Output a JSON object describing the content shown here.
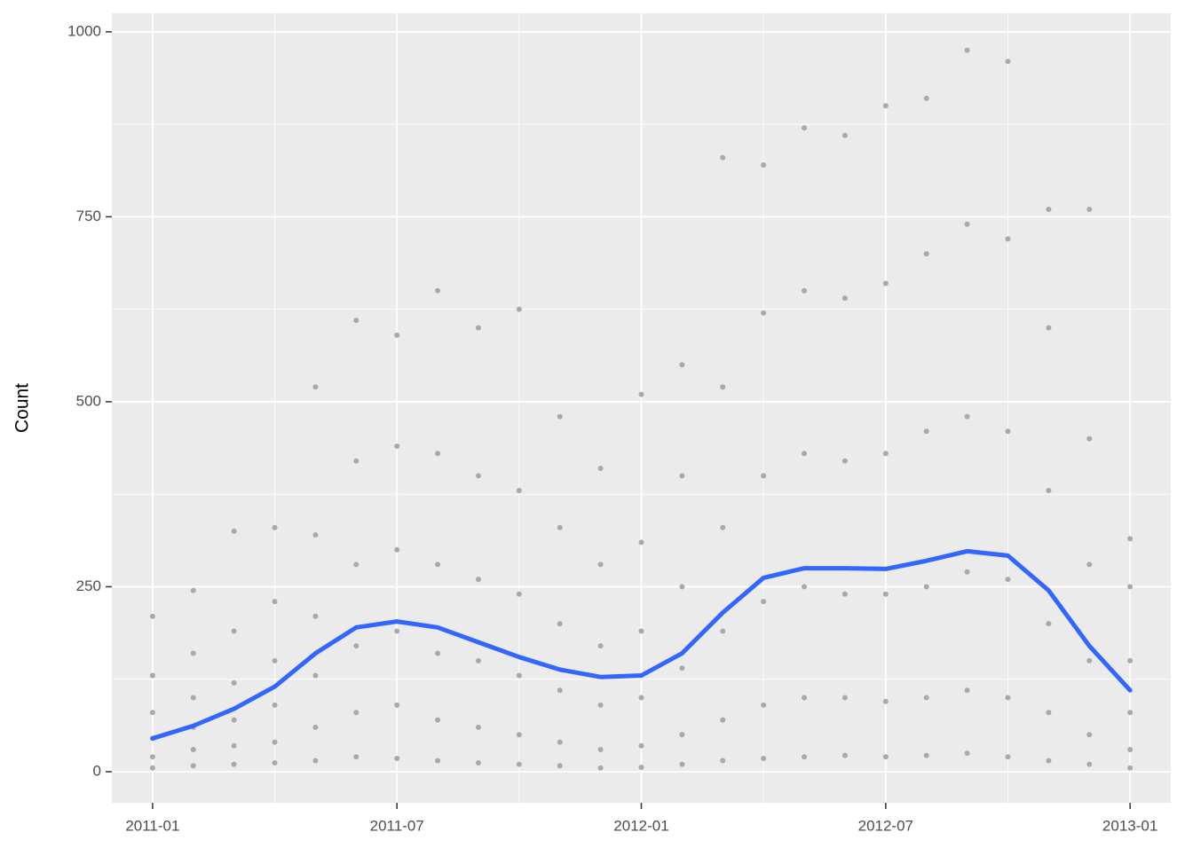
{
  "chart_data": {
    "type": "scatter",
    "y_label": "Count",
    "background": "#EBEBEB",
    "grid": true,
    "xlim": [
      "2010-12",
      "2013-02"
    ],
    "xticks": [
      "2011-01",
      "2011-07",
      "2012-01",
      "2012-07",
      "2013-01"
    ],
    "x_minor_gridlines": [
      "2011-04",
      "2011-10",
      "2012-04",
      "2012-10"
    ],
    "ylim": [
      -42,
      1025
    ],
    "yticks": [
      0,
      250,
      500,
      750,
      1000
    ],
    "y_minor_gridlines": [
      125,
      375,
      625,
      875
    ],
    "points": {
      "color": "#A9A9A9",
      "x": [
        "2011-01",
        "2011-01",
        "2011-01",
        "2011-01",
        "2011-01",
        "2011-01",
        "2011-02",
        "2011-02",
        "2011-02",
        "2011-02",
        "2011-02",
        "2011-02",
        "2011-03",
        "2011-03",
        "2011-03",
        "2011-03",
        "2011-03",
        "2011-03",
        "2011-04",
        "2011-04",
        "2011-04",
        "2011-04",
        "2011-04",
        "2011-04",
        "2011-05",
        "2011-05",
        "2011-05",
        "2011-05",
        "2011-05",
        "2011-05",
        "2011-06",
        "2011-06",
        "2011-06",
        "2011-06",
        "2011-06",
        "2011-06",
        "2011-07",
        "2011-07",
        "2011-07",
        "2011-07",
        "2011-07",
        "2011-07",
        "2011-08",
        "2011-08",
        "2011-08",
        "2011-08",
        "2011-08",
        "2011-08",
        "2011-09",
        "2011-09",
        "2011-09",
        "2011-09",
        "2011-09",
        "2011-09",
        "2011-10",
        "2011-10",
        "2011-10",
        "2011-10",
        "2011-10",
        "2011-10",
        "2011-11",
        "2011-11",
        "2011-11",
        "2011-11",
        "2011-11",
        "2011-11",
        "2011-12",
        "2011-12",
        "2011-12",
        "2011-12",
        "2011-12",
        "2011-12",
        "2012-01",
        "2012-01",
        "2012-01",
        "2012-01",
        "2012-01",
        "2012-01",
        "2012-02",
        "2012-02",
        "2012-02",
        "2012-02",
        "2012-02",
        "2012-02",
        "2012-03",
        "2012-03",
        "2012-03",
        "2012-03",
        "2012-03",
        "2012-03",
        "2012-04",
        "2012-04",
        "2012-04",
        "2012-04",
        "2012-04",
        "2012-04",
        "2012-05",
        "2012-05",
        "2012-05",
        "2012-05",
        "2012-05",
        "2012-05",
        "2012-06",
        "2012-06",
        "2012-06",
        "2012-06",
        "2012-06",
        "2012-06",
        "2012-07",
        "2012-07",
        "2012-07",
        "2012-07",
        "2012-07",
        "2012-07",
        "2012-08",
        "2012-08",
        "2012-08",
        "2012-08",
        "2012-08",
        "2012-08",
        "2012-09",
        "2012-09",
        "2012-09",
        "2012-09",
        "2012-09",
        "2012-09",
        "2012-10",
        "2012-10",
        "2012-10",
        "2012-10",
        "2012-10",
        "2012-10",
        "2012-11",
        "2012-11",
        "2012-11",
        "2012-11",
        "2012-11",
        "2012-11",
        "2012-12",
        "2012-12",
        "2012-12",
        "2012-12",
        "2012-12",
        "2012-12",
        "2013-01",
        "2013-01",
        "2013-01",
        "2013-01",
        "2013-01",
        "2013-01"
      ],
      "y": [
        5,
        20,
        45,
        80,
        130,
        210,
        8,
        30,
        60,
        100,
        160,
        245,
        10,
        35,
        70,
        120,
        190,
        325,
        12,
        40,
        90,
        150,
        230,
        330,
        15,
        60,
        130,
        210,
        320,
        520,
        20,
        80,
        170,
        280,
        420,
        610,
        18,
        90,
        190,
        300,
        440,
        590,
        15,
        70,
        160,
        280,
        430,
        650,
        12,
        60,
        150,
        260,
        400,
        600,
        10,
        50,
        130,
        240,
        380,
        625,
        8,
        40,
        110,
        200,
        330,
        480,
        5,
        30,
        90,
        170,
        280,
        410,
        6,
        35,
        100,
        190,
        310,
        510,
        10,
        50,
        140,
        250,
        400,
        550,
        15,
        70,
        190,
        330,
        520,
        830,
        18,
        90,
        230,
        400,
        620,
        820,
        20,
        100,
        250,
        430,
        650,
        870,
        22,
        100,
        240,
        420,
        640,
        860,
        20,
        95,
        240,
        430,
        660,
        900,
        22,
        100,
        250,
        460,
        700,
        910,
        25,
        110,
        270,
        480,
        740,
        975,
        20,
        100,
        260,
        460,
        720,
        960,
        15,
        80,
        200,
        380,
        600,
        760,
        10,
        50,
        150,
        280,
        450,
        760,
        5,
        30,
        80,
        150,
        250,
        315
      ]
    },
    "smooth": {
      "color": "#3366FF",
      "x": [
        "2011-01",
        "2011-02",
        "2011-03",
        "2011-04",
        "2011-05",
        "2011-06",
        "2011-07",
        "2011-08",
        "2011-09",
        "2011-10",
        "2011-11",
        "2011-12",
        "2012-01",
        "2012-02",
        "2012-03",
        "2012-04",
        "2012-05",
        "2012-06",
        "2012-07",
        "2012-08",
        "2012-09",
        "2012-10",
        "2012-11",
        "2012-12",
        "2013-01"
      ],
      "values": [
        45,
        62,
        85,
        115,
        160,
        195,
        203,
        195,
        175,
        155,
        138,
        128,
        130,
        160,
        215,
        262,
        275,
        275,
        274,
        285,
        298,
        292,
        245,
        170,
        110
      ]
    }
  }
}
